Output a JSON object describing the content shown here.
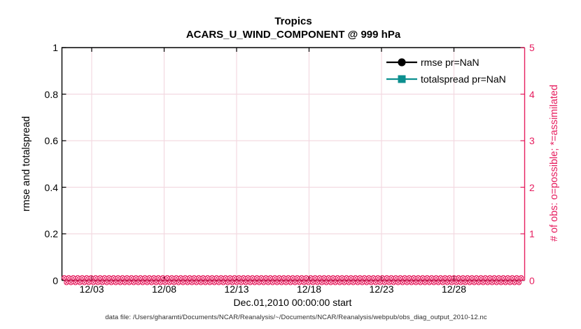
{
  "figure": {
    "footer": "data file: /Users/gharamti/Documents/NCAR/Reanalysis/~/Documents/NCAR/Reanalysis/webpub/obs_diag_output_2010-12.nc"
  },
  "chart_data": {
    "type": "line",
    "title": "Tropics",
    "subtitle": "ACARS_U_WIND_COMPONENT @ 999 hPa",
    "xlabel": "Dec.01,2010 00:00:00 start",
    "ylabel_left": "rmse and totalspread",
    "ylabel_right": "# of obs: o=possible; *=assimilated",
    "x_ticks": [
      "12/03",
      "12/08",
      "12/13",
      "12/18",
      "12/23",
      "12/28"
    ],
    "y_left_ticks": [
      "0",
      "0.2",
      "0.4",
      "0.6",
      "0.8",
      "1"
    ],
    "y_right_ticks": [
      "0",
      "1",
      "2",
      "3",
      "4",
      "5"
    ],
    "ylim_left": [
      0,
      1
    ],
    "ylim_right": [
      0,
      5
    ],
    "grid": true,
    "legend_position": "top-right-inside",
    "legend": [
      {
        "label": "rmse pr=NaN",
        "color": "#000000",
        "marker": "circle"
      },
      {
        "label": "totalspread pr=NaN",
        "color": "#0c8f8f",
        "marker": "square"
      }
    ],
    "series": [
      {
        "name": "rmse",
        "pr": "NaN",
        "values": []
      },
      {
        "name": "totalspread",
        "pr": "NaN",
        "values": []
      },
      {
        "name": "# of obs possible (o markers)",
        "axis": "right",
        "value_constant": 0
      },
      {
        "name": "# of obs assimilated (* markers)",
        "axis": "right",
        "value_constant": 0
      }
    ],
    "colors": {
      "obs_pink": "#e61e5f",
      "grid_pink": "#f3d9e1",
      "rmse_black": "#000000",
      "totalspread_teal": "#0c8f8f",
      "axis_black": "#000000"
    }
  }
}
